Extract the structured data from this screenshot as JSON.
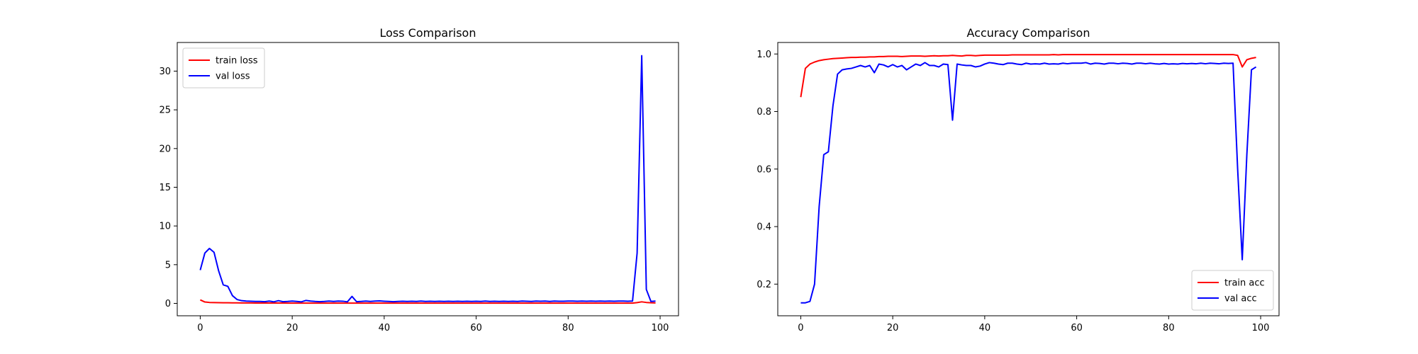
{
  "chart_data": [
    {
      "type": "line",
      "title": "Loss Comparison",
      "xlabel": "",
      "ylabel": "",
      "xlim": [
        -5,
        104
      ],
      "ylim": [
        -1.6,
        33.7
      ],
      "xticks": [
        0,
        20,
        40,
        60,
        80,
        100
      ],
      "yticks": [
        0,
        5,
        10,
        15,
        20,
        25,
        30
      ],
      "grid": false,
      "legend": "top-left",
      "series": [
        {
          "name": "train loss",
          "color": "#ff0000",
          "x": [
            0,
            1,
            2,
            3,
            4,
            5,
            6,
            7,
            8,
            9,
            10,
            11,
            12,
            13,
            14,
            15,
            16,
            17,
            18,
            19,
            20,
            21,
            22,
            23,
            24,
            25,
            26,
            27,
            28,
            29,
            30,
            31,
            32,
            33,
            34,
            35,
            36,
            37,
            38,
            39,
            40,
            41,
            42,
            43,
            44,
            45,
            46,
            47,
            48,
            49,
            50,
            51,
            52,
            53,
            54,
            55,
            56,
            57,
            58,
            59,
            60,
            61,
            62,
            63,
            64,
            65,
            66,
            67,
            68,
            69,
            70,
            71,
            72,
            73,
            74,
            75,
            76,
            77,
            78,
            79,
            80,
            81,
            82,
            83,
            84,
            85,
            86,
            87,
            88,
            89,
            90,
            91,
            92,
            93,
            94,
            95,
            96,
            97,
            98,
            99
          ],
          "y": [
            0.45,
            0.18,
            0.12,
            0.1,
            0.09,
            0.08,
            0.08,
            0.07,
            0.07,
            0.06,
            0.06,
            0.06,
            0.05,
            0.05,
            0.05,
            0.05,
            0.05,
            0.05,
            0.05,
            0.04,
            0.04,
            0.04,
            0.04,
            0.04,
            0.04,
            0.04,
            0.04,
            0.04,
            0.03,
            0.03,
            0.03,
            0.03,
            0.03,
            0.03,
            0.03,
            0.03,
            0.03,
            0.03,
            0.03,
            0.03,
            0.03,
            0.03,
            0.03,
            0.03,
            0.03,
            0.03,
            0.03,
            0.03,
            0.03,
            0.03,
            0.03,
            0.03,
            0.03,
            0.03,
            0.03,
            0.03,
            0.03,
            0.03,
            0.03,
            0.03,
            0.03,
            0.03,
            0.03,
            0.03,
            0.03,
            0.03,
            0.03,
            0.03,
            0.03,
            0.03,
            0.03,
            0.03,
            0.03,
            0.03,
            0.03,
            0.03,
            0.03,
            0.03,
            0.03,
            0.03,
            0.03,
            0.03,
            0.03,
            0.03,
            0.03,
            0.03,
            0.03,
            0.03,
            0.03,
            0.03,
            0.03,
            0.03,
            0.03,
            0.03,
            0.03,
            0.1,
            0.2,
            0.12,
            0.08,
            0.06
          ]
        },
        {
          "name": "val loss",
          "color": "#0000ff",
          "x": [
            0,
            1,
            2,
            3,
            4,
            5,
            6,
            7,
            8,
            9,
            10,
            11,
            12,
            13,
            14,
            15,
            16,
            17,
            18,
            19,
            20,
            21,
            22,
            23,
            24,
            25,
            26,
            27,
            28,
            29,
            30,
            31,
            32,
            33,
            34,
            35,
            36,
            37,
            38,
            39,
            40,
            41,
            42,
            43,
            44,
            45,
            46,
            47,
            48,
            49,
            50,
            51,
            52,
            53,
            54,
            55,
            56,
            57,
            58,
            59,
            60,
            61,
            62,
            63,
            64,
            65,
            66,
            67,
            68,
            69,
            70,
            71,
            72,
            73,
            74,
            75,
            76,
            77,
            78,
            79,
            80,
            81,
            82,
            83,
            84,
            85,
            86,
            87,
            88,
            89,
            90,
            91,
            92,
            93,
            94,
            95,
            96,
            97,
            98,
            99
          ],
          "y": [
            4.3,
            6.5,
            7.1,
            6.6,
            4.2,
            2.4,
            2.2,
            1.0,
            0.5,
            0.35,
            0.3,
            0.28,
            0.25,
            0.25,
            0.22,
            0.3,
            0.2,
            0.35,
            0.22,
            0.25,
            0.3,
            0.25,
            0.2,
            0.38,
            0.3,
            0.25,
            0.22,
            0.25,
            0.3,
            0.25,
            0.3,
            0.28,
            0.2,
            0.9,
            0.22,
            0.25,
            0.3,
            0.25,
            0.3,
            0.32,
            0.28,
            0.25,
            0.22,
            0.25,
            0.28,
            0.25,
            0.27,
            0.25,
            0.3,
            0.25,
            0.27,
            0.25,
            0.28,
            0.25,
            0.27,
            0.25,
            0.27,
            0.25,
            0.28,
            0.25,
            0.27,
            0.25,
            0.3,
            0.25,
            0.28,
            0.25,
            0.27,
            0.25,
            0.28,
            0.25,
            0.3,
            0.27,
            0.25,
            0.3,
            0.27,
            0.3,
            0.25,
            0.3,
            0.27,
            0.28,
            0.3,
            0.3,
            0.28,
            0.3,
            0.27,
            0.3,
            0.28,
            0.3,
            0.27,
            0.3,
            0.28,
            0.3,
            0.3,
            0.28,
            0.3,
            6.5,
            32.0,
            1.8,
            0.25,
            0.3
          ]
        }
      ]
    },
    {
      "type": "line",
      "title": "Accuracy Comparison",
      "xlabel": "",
      "ylabel": "",
      "xlim": [
        -5,
        104
      ],
      "ylim": [
        0.09,
        1.04
      ],
      "xticks": [
        0,
        20,
        40,
        60,
        80,
        100
      ],
      "yticks": [
        0.2,
        0.4,
        0.6,
        0.8,
        1.0
      ],
      "ytick_labels": [
        "0.2",
        "0.4",
        "0.6",
        "0.8",
        "1.0"
      ],
      "grid": false,
      "legend": "bottom-right",
      "series": [
        {
          "name": "train acc",
          "color": "#ff0000",
          "x": [
            0,
            1,
            2,
            3,
            4,
            5,
            6,
            7,
            8,
            9,
            10,
            11,
            12,
            13,
            14,
            15,
            16,
            17,
            18,
            19,
            20,
            21,
            22,
            23,
            24,
            25,
            26,
            27,
            28,
            29,
            30,
            31,
            32,
            33,
            34,
            35,
            36,
            37,
            38,
            39,
            40,
            41,
            42,
            43,
            44,
            45,
            46,
            47,
            48,
            49,
            50,
            51,
            52,
            53,
            54,
            55,
            56,
            57,
            58,
            59,
            60,
            61,
            62,
            63,
            64,
            65,
            66,
            67,
            68,
            69,
            70,
            71,
            72,
            73,
            74,
            75,
            76,
            77,
            78,
            79,
            80,
            81,
            82,
            83,
            84,
            85,
            86,
            87,
            88,
            89,
            90,
            91,
            92,
            93,
            94,
            95,
            96,
            97,
            98,
            99
          ],
          "y": [
            0.85,
            0.95,
            0.965,
            0.972,
            0.977,
            0.98,
            0.982,
            0.984,
            0.985,
            0.986,
            0.987,
            0.988,
            0.988,
            0.989,
            0.989,
            0.99,
            0.99,
            0.991,
            0.991,
            0.992,
            0.992,
            0.992,
            0.991,
            0.992,
            0.993,
            0.993,
            0.993,
            0.992,
            0.993,
            0.994,
            0.993,
            0.994,
            0.994,
            0.995,
            0.994,
            0.993,
            0.995,
            0.995,
            0.994,
            0.995,
            0.996,
            0.996,
            0.996,
            0.996,
            0.996,
            0.996,
            0.997,
            0.997,
            0.997,
            0.997,
            0.997,
            0.997,
            0.997,
            0.997,
            0.997,
            0.998,
            0.997,
            0.998,
            0.998,
            0.998,
            0.998,
            0.998,
            0.998,
            0.998,
            0.998,
            0.998,
            0.998,
            0.998,
            0.998,
            0.998,
            0.998,
            0.998,
            0.998,
            0.998,
            0.998,
            0.998,
            0.998,
            0.998,
            0.998,
            0.998,
            0.998,
            0.998,
            0.998,
            0.998,
            0.998,
            0.998,
            0.998,
            0.998,
            0.998,
            0.998,
            0.998,
            0.998,
            0.998,
            0.998,
            0.998,
            0.995,
            0.955,
            0.98,
            0.985,
            0.988
          ]
        },
        {
          "name": "val acc",
          "color": "#0000ff",
          "x": [
            0,
            1,
            2,
            3,
            4,
            5,
            6,
            7,
            8,
            9,
            10,
            11,
            12,
            13,
            14,
            15,
            16,
            17,
            18,
            19,
            20,
            21,
            22,
            23,
            24,
            25,
            26,
            27,
            28,
            29,
            30,
            31,
            32,
            33,
            34,
            35,
            36,
            37,
            38,
            39,
            40,
            41,
            42,
            43,
            44,
            45,
            46,
            47,
            48,
            49,
            50,
            51,
            52,
            53,
            54,
            55,
            56,
            57,
            58,
            59,
            60,
            61,
            62,
            63,
            64,
            65,
            66,
            67,
            68,
            69,
            70,
            71,
            72,
            73,
            74,
            75,
            76,
            77,
            78,
            79,
            80,
            81,
            82,
            83,
            84,
            85,
            86,
            87,
            88,
            89,
            90,
            91,
            92,
            93,
            94,
            95,
            96,
            97,
            98,
            99
          ],
          "y": [
            0.135,
            0.135,
            0.14,
            0.2,
            0.47,
            0.65,
            0.66,
            0.82,
            0.93,
            0.945,
            0.948,
            0.95,
            0.955,
            0.96,
            0.955,
            0.96,
            0.935,
            0.965,
            0.962,
            0.955,
            0.963,
            0.955,
            0.96,
            0.945,
            0.955,
            0.965,
            0.96,
            0.97,
            0.96,
            0.96,
            0.955,
            0.965,
            0.963,
            0.77,
            0.965,
            0.962,
            0.96,
            0.96,
            0.955,
            0.958,
            0.965,
            0.97,
            0.968,
            0.965,
            0.963,
            0.968,
            0.968,
            0.965,
            0.963,
            0.968,
            0.965,
            0.966,
            0.965,
            0.968,
            0.965,
            0.966,
            0.965,
            0.968,
            0.966,
            0.968,
            0.968,
            0.968,
            0.97,
            0.965,
            0.968,
            0.967,
            0.965,
            0.968,
            0.968,
            0.966,
            0.968,
            0.967,
            0.965,
            0.968,
            0.968,
            0.966,
            0.968,
            0.966,
            0.965,
            0.967,
            0.965,
            0.966,
            0.965,
            0.967,
            0.966,
            0.967,
            0.966,
            0.968,
            0.966,
            0.968,
            0.967,
            0.966,
            0.968,
            0.967,
            0.968,
            0.6,
            0.285,
            0.65,
            0.945,
            0.955
          ]
        }
      ]
    }
  ]
}
